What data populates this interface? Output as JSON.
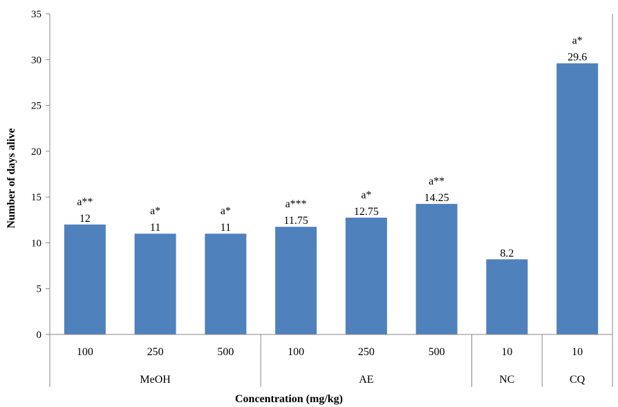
{
  "chart_data": {
    "type": "bar",
    "xlabel": "Concentration  (mg/kg)",
    "ylabel": "Number of days alive",
    "ylim": [
      0,
      35
    ],
    "yticks": [
      0,
      5,
      10,
      15,
      20,
      25,
      30,
      35
    ],
    "grid": false,
    "color": "#4f81bd",
    "groups": [
      {
        "label": "MeOH",
        "count": 3
      },
      {
        "label": "AE",
        "count": 3
      },
      {
        "label": "NC",
        "count": 1
      },
      {
        "label": "CQ",
        "count": 1
      }
    ],
    "categories": [
      "100",
      "250",
      "500",
      "100",
      "250",
      "500",
      "10",
      "10"
    ],
    "values": [
      12,
      11,
      11,
      11.75,
      12.75,
      14.25,
      8.2,
      29.6
    ],
    "data_labels": [
      "12",
      "11",
      "11",
      "11.75",
      "12.75",
      "14.25",
      "8.2",
      "29.6"
    ],
    "significance": [
      "a**",
      "a*",
      "a*",
      "a***",
      "a*",
      "a**",
      "",
      "a*"
    ]
  }
}
